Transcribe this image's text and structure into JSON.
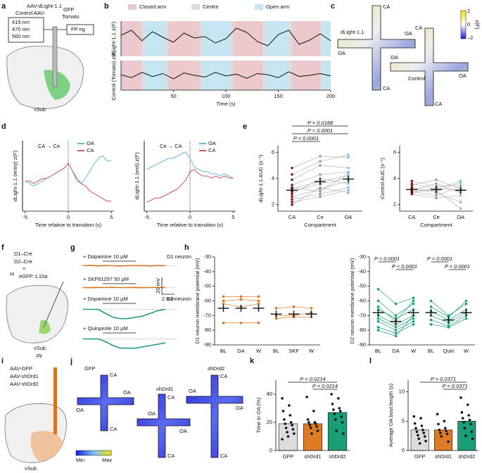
{
  "panels": {
    "letters": [
      "a",
      "b",
      "c",
      "d",
      "e",
      "f",
      "g",
      "h",
      "i",
      "j",
      "k",
      "l"
    ],
    "a": {
      "virus": "AAV-dLight-1.1",
      "control": "Control AAV-",
      "gfp": "GFP",
      "tomato": "Tomato",
      "wavelengths": [
        "415 nm",
        "470 nm",
        "560 nm"
      ],
      "rig": "FP rig",
      "region": "vSub"
    },
    "c": {
      "closed": "CA",
      "open": "OA",
      "sensor": "dLight-1.1",
      "control": "Control",
      "colorbar_label": "z(F)",
      "colorbar_ticks": [
        "2",
        "0",
        "–2"
      ]
    },
    "f": {
      "lines": [
        "D1–Cre",
        "D2–Cre",
        "×"
      ],
      "reporter_sup": "fl/fl",
      "reporter": "eGFP::L10a",
      "region": "vSub",
      "layer": "py"
    },
    "i": {
      "viruses": [
        "AAV-GFP",
        "AAV-shDrd1",
        "AAV-shDrd2"
      ],
      "region": "vSub"
    },
    "j": {
      "groups": [
        "GFP",
        "shDrd1",
        "shDrd2"
      ],
      "closed": "CA",
      "open": "OA",
      "scale": [
        "Min",
        "Max"
      ]
    }
  },
  "chart_data": [
    {
      "type": "line",
      "legend": [
        {
          "name": "Closed arm",
          "color": "#ecc9cc"
        },
        {
          "name": "Centre",
          "color": "#dcdcdc"
        },
        {
          "name": "Open arm",
          "color": "#c5e6f2"
        }
      ],
      "bands": [
        [
          0,
          20,
          0
        ],
        [
          20,
          22,
          1
        ],
        [
          22,
          42,
          2
        ],
        [
          42,
          45,
          1
        ],
        [
          45,
          75,
          0
        ],
        [
          75,
          78,
          1
        ],
        [
          78,
          105,
          2
        ],
        [
          105,
          107,
          1
        ],
        [
          107,
          135,
          0
        ],
        [
          135,
          138,
          1
        ],
        [
          138,
          160,
          2
        ],
        [
          160,
          163,
          1
        ],
        [
          163,
          190,
          0
        ],
        [
          190,
          192,
          1
        ],
        [
          192,
          200,
          2
        ]
      ],
      "x": [
        0,
        10,
        20,
        30,
        40,
        50,
        60,
        70,
        80,
        90,
        100,
        110,
        120,
        130,
        140,
        150,
        160,
        170,
        180,
        190,
        200
      ],
      "series": [
        {
          "name": "dLight-1.1",
          "ylabel": "dLight-1.1 z(F)",
          "color": "#111111",
          "values": [
            0.5,
            1.2,
            -0.3,
            1.0,
            0.2,
            -0.5,
            0.8,
            0.1,
            0.3,
            -0.6,
            0.0,
            1.5,
            0.9,
            -0.4,
            -1.0,
            0.6,
            1.2,
            -0.8,
            -0.2,
            0.7,
            -0.3
          ]
        },
        {
          "name": "Control",
          "ylabel": "Control (Tomato) z(F)",
          "color": "#111111",
          "values": [
            0.1,
            -0.4,
            0.5,
            -0.2,
            0.3,
            -0.6,
            0.4,
            0.0,
            -0.3,
            0.5,
            -0.1,
            0.2,
            -0.5,
            0.3,
            0.1,
            -0.4,
            0.6,
            -0.2,
            0.0,
            0.3,
            -0.1
          ]
        }
      ],
      "xlim": [
        0,
        200
      ],
      "ylim": [
        -2.5,
        2.5
      ],
      "xticks": [
        50,
        100,
        150,
        200
      ],
      "xlabel": "Time (s)"
    },
    {
      "type": "line",
      "annotation": "CA → Ce",
      "x": [
        -5,
        -4.5,
        -4,
        -3.5,
        -3,
        -2.5,
        -2,
        -1.5,
        -1,
        -0.5,
        0,
        0.5,
        1,
        1.5,
        2,
        2.5,
        3,
        3.5,
        4,
        4.5,
        5
      ],
      "series": [
        {
          "name": "OA",
          "color": "#6bb8de",
          "values": [
            0.2,
            0.1,
            0.0,
            0.1,
            0.2,
            0.3,
            0.4,
            0.5,
            0.6,
            0.7,
            0.9,
            0.6,
            0.2,
            0.1,
            0.3,
            0.6,
            0.9,
            1.1,
            1.2,
            1.0,
            1.0
          ]
        },
        {
          "name": "CA",
          "color": "#d0575a",
          "values": [
            0.2,
            0.2,
            0.1,
            0.2,
            0.3,
            0.3,
            0.4,
            0.5,
            0.6,
            0.7,
            0.9,
            0.6,
            0.3,
            0.1,
            0.0,
            -0.2,
            -0.3,
            -0.4,
            -0.5,
            -0.6,
            -0.6
          ]
        }
      ],
      "xlim": [
        -5.3,
        5.3
      ],
      "ylim": [
        -1,
        1.8
      ],
      "xticks": [
        -5,
        0,
        5
      ],
      "ylabel": "dLight-1.1 (entry) z(F)",
      "xlabel": "Time relative to transition (s)"
    },
    {
      "type": "line",
      "annotation": "Ce → CA",
      "x": [
        -5,
        -4.5,
        -4,
        -3.5,
        -3,
        -2.5,
        -2,
        -1.5,
        -1,
        -0.5,
        0,
        0.5,
        1,
        1.5,
        2,
        2.5,
        3,
        3.5,
        4,
        4.5,
        5
      ],
      "series": [
        {
          "name": "OA",
          "color": "#6bb8de",
          "values": [
            0.5,
            0.6,
            0.7,
            0.8,
            0.9,
            1.0,
            1.0,
            1.1,
            1.2,
            1.3,
            1.0,
            0.6,
            0.5,
            0.4,
            0.4,
            0.3,
            0.3,
            0.2,
            0.3,
            0.2,
            0.1
          ]
        },
        {
          "name": "CA",
          "color": "#d0575a",
          "values": [
            -1.0,
            -0.9,
            -0.8,
            -0.8,
            -0.7,
            -0.6,
            -0.5,
            -0.4,
            -0.2,
            0.0,
            0.4,
            0.5,
            0.3,
            0.2,
            0.2,
            0.1,
            0.2,
            0.1,
            0.2,
            0.1,
            0.1
          ]
        }
      ],
      "xlim": [
        -5.3,
        5.3
      ],
      "ylim": [
        -1.4,
        1.8
      ],
      "xticks": [
        -5,
        0,
        5
      ],
      "ylabel": "dLight-1.1 (exit) z(F)",
      "xlabel": "Time relative to transition (s)"
    },
    {
      "type": "dot",
      "categories": [
        "CA",
        "Ce",
        "OA"
      ],
      "colors": [
        "#8b1a1a",
        "#999999",
        "#7fbfe0"
      ],
      "line_color": "#b5b5b5",
      "values": [
        3.1,
        3.75,
        3.95
      ],
      "subjects": [
        [
          4.8,
          5.7,
          5.6
        ],
        [
          4.3,
          5.3,
          5.8
        ],
        [
          3.9,
          5.0,
          4.8
        ],
        [
          3.5,
          4.3,
          4.5
        ],
        [
          3.2,
          3.8,
          4.2
        ],
        [
          3.0,
          3.6,
          4.0
        ],
        [
          2.8,
          4.0,
          3.6
        ],
        [
          2.6,
          3.2,
          3.8
        ],
        [
          2.4,
          2.8,
          3.3
        ],
        [
          2.2,
          2.6,
          3.1
        ],
        [
          2.0,
          3.3,
          2.9
        ],
        [
          3.3,
          3.0,
          4.4
        ]
      ],
      "comparisons": [
        {
          "pair": [
            0,
            2
          ],
          "label": "P = 0.0188"
        },
        {
          "pair": [
            0,
            2
          ],
          "label": "P < 0.0001"
        },
        {
          "pair": [
            0,
            1
          ],
          "label": "P < 0.0001"
        }
      ],
      "ylim": [
        1.5,
        6.5
      ],
      "yticks": [
        2,
        4,
        6
      ],
      "ylabel": "dLight-1.1 AUC (s⁻¹)",
      "xlabel": "Compartment"
    },
    {
      "type": "dot",
      "categories": [
        "CA",
        "Ce",
        "OA"
      ],
      "colors": [
        "#8b1a1a",
        "#999999",
        "#7fbfe0"
      ],
      "line_color": "#b5b5b5",
      "values": [
        3.15,
        3.15,
        3.1
      ],
      "subjects": [
        [
          3.8,
          3.4,
          3.5
        ],
        [
          3.5,
          3.9,
          3.2
        ],
        [
          3.3,
          3.0,
          3.7
        ],
        [
          3.1,
          3.6,
          2.9
        ],
        [
          3.0,
          2.7,
          3.4
        ],
        [
          2.9,
          3.3,
          3.0
        ],
        [
          2.8,
          2.5,
          2.7
        ],
        [
          3.6,
          3.2,
          3.8
        ],
        [
          3.2,
          2.9,
          2.2
        ],
        [
          3.0,
          3.1,
          1.7
        ]
      ],
      "ylim": [
        1.5,
        6.5
      ],
      "yticks": [
        2,
        4,
        6
      ],
      "ylabel": "Control AUC (s⁻¹)",
      "xlabel": "Compartment"
    },
    {
      "type": "trace",
      "ylim": [
        -12,
        4
      ],
      "scale_bar": [
        "20 mV",
        "2 min"
      ],
      "series": [
        {
          "name": "+ Dopamine 10 μM",
          "cell": "D1 neuron",
          "color": "#d9731f",
          "values": [
            0,
            0.3,
            -0.2,
            0.2,
            0,
            -0.3,
            0.2,
            0,
            0.1,
            -0.2,
            0.2,
            0
          ]
        },
        {
          "name": "+ SKF81297 50 μM",
          "color": "#d9731f",
          "values": [
            0,
            -0.2,
            0.2,
            0,
            0.3,
            -0.1,
            0,
            0.2,
            -0.2,
            0,
            0.1,
            0
          ]
        },
        {
          "name": "+ Dopamine 10 μM",
          "cell": "D2 neuron",
          "color": "#1a9e77",
          "values": [
            0,
            0,
            0,
            -3,
            -6,
            -7,
            -7,
            -6,
            -5,
            -3,
            -1,
            0
          ]
        },
        {
          "name": "+ Quinpirole 10 μM",
          "color": "#1a9e77",
          "values": [
            0,
            0,
            0,
            -2,
            -5,
            -7,
            -7,
            -7,
            -6,
            -5,
            -4,
            -3
          ]
        }
      ]
    },
    {
      "type": "dot",
      "categories": [
        "BL",
        "DA",
        "W",
        "BL",
        "SKF",
        "W"
      ],
      "color": "#d9731f",
      "line_color": "#d9731f",
      "values": [
        -65,
        -65,
        -65,
        -69,
        -69,
        -69
      ],
      "subjects": [
        [
          -57,
          -57,
          -57,
          null,
          null,
          null
        ],
        [
          -60,
          -59,
          -60,
          null,
          null,
          null
        ],
        [
          -62,
          -64,
          -62,
          null,
          null,
          null
        ],
        [
          -75,
          -75,
          -75,
          null,
          null,
          null
        ],
        [
          null,
          null,
          null,
          -65,
          -64,
          -65
        ],
        [
          null,
          null,
          null,
          -70,
          -70,
          -68
        ],
        [
          null,
          null,
          null,
          -72,
          -71,
          -71
        ]
      ],
      "ylim": [
        -90,
        -30
      ],
      "yticks": [
        -90,
        -80,
        -70,
        -60,
        -50,
        -40,
        -30
      ],
      "ylabel": "D1 neuron membrane potential (mV)"
    },
    {
      "type": "dot",
      "categories": [
        "BL",
        "DA",
        "W",
        "BL",
        "Quin",
        "W"
      ],
      "color": "#1a9e77",
      "line_color": "#1a9e77",
      "values": [
        -68,
        -74,
        -68,
        -68,
        -73,
        -68
      ],
      "subjects": [
        [
          -52,
          -62,
          -58,
          null,
          null,
          null
        ],
        [
          -60,
          -70,
          -62,
          null,
          null,
          null
        ],
        [
          -64,
          -74,
          -60,
          null,
          null,
          null
        ],
        [
          -66,
          -72,
          -66,
          null,
          null,
          null
        ],
        [
          -70,
          -76,
          -70,
          null,
          null,
          null
        ],
        [
          -72,
          -78,
          -72,
          null,
          null,
          null
        ],
        [
          -74,
          -80,
          -74,
          null,
          null,
          null
        ],
        [
          -78,
          -82,
          -76,
          null,
          null,
          null
        ],
        [
          -80,
          -84,
          -70,
          null,
          null,
          null
        ],
        [
          null,
          null,
          null,
          -60,
          -70,
          -62
        ],
        [
          null,
          null,
          null,
          -64,
          -71,
          -60
        ],
        [
          null,
          null,
          null,
          -67,
          -73,
          -66
        ],
        [
          null,
          null,
          null,
          -70,
          -75,
          -68
        ],
        [
          null,
          null,
          null,
          -73,
          -77,
          -70
        ],
        [
          null,
          null,
          null,
          -76,
          -78,
          -72
        ]
      ],
      "comparisons": [
        {
          "pair": [
            0,
            1
          ],
          "label": "P < 0.0001"
        },
        {
          "pair": [
            1,
            2
          ],
          "label": "P < 0.0001"
        },
        {
          "pair": [
            3,
            4
          ],
          "label": "P < 0.0001"
        },
        {
          "pair": [
            4,
            5
          ],
          "label": "P < 0.0001"
        }
      ],
      "ylim": [
        -90,
        -30
      ],
      "yticks": [
        -90,
        -80,
        -70,
        -60,
        -50,
        -40,
        -30
      ],
      "ylabel": "D2 neuron membrane potential (mV)"
    },
    {
      "type": "bar",
      "categories": [
        "GFP",
        "shDrd1",
        "shDrd2"
      ],
      "colors": [
        "#dcdcdc",
        "#e07b25",
        "#1a9e77"
      ],
      "values": [
        19,
        19,
        27
      ],
      "points": [
        [
          37,
          32,
          28,
          25,
          22,
          20,
          19,
          18,
          16,
          15,
          13,
          12,
          10,
          8
        ],
        [
          38,
          28,
          22,
          20,
          20,
          19,
          18,
          17,
          16,
          14,
          12
        ],
        [
          40,
          37,
          33,
          30,
          29,
          28,
          26,
          24,
          22,
          20,
          14,
          12
        ]
      ],
      "comparisons": [
        {
          "pair": [
            0,
            2
          ],
          "label": "P = 0.0214"
        },
        {
          "pair": [
            1,
            2
          ],
          "label": "P = 0.0214"
        }
      ],
      "ylim": [
        0,
        50
      ],
      "yticks": [
        0,
        20,
        40
      ],
      "ylabel": "Time in OA (%)"
    },
    {
      "type": "bar",
      "categories": [
        "GFP",
        "shDrd1",
        "shDrd2"
      ],
      "colors": [
        "#dcdcdc",
        "#e07b25",
        "#1a9e77"
      ],
      "values": [
        3.5,
        3.5,
        5.0
      ],
      "points": [
        [
          5.8,
          5.5,
          4.6,
          4.2,
          3.8,
          3.5,
          3.2,
          3.0,
          2.6,
          2.4,
          2.0,
          1.6,
          1.2
        ],
        [
          6.2,
          5.0,
          4.5,
          3.8,
          3.5,
          3.3,
          3.0,
          2.8,
          2.4,
          1.5
        ],
        [
          9.0,
          7.8,
          6.5,
          6.0,
          5.5,
          5.2,
          4.8,
          4.5,
          3.8,
          3.2,
          2.5,
          2.0
        ]
      ],
      "comparisons": [
        {
          "pair": [
            0,
            2
          ],
          "label": "P = 0.0371"
        },
        {
          "pair": [
            1,
            2
          ],
          "label": "P = 0.0371"
        }
      ],
      "ylim": [
        0,
        12
      ],
      "yticks": [
        0,
        5,
        10
      ],
      "ylabel": "Average OA bout length (s)"
    }
  ]
}
